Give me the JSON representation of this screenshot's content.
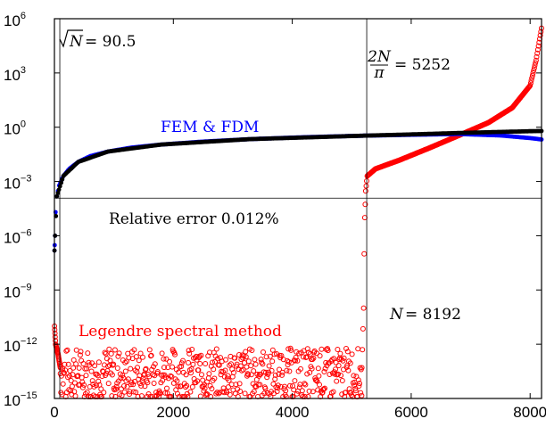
{
  "chart_data": {
    "type": "scatter",
    "x_axis": {
      "range": [
        0,
        8192
      ],
      "ticks": [
        0,
        2000,
        4000,
        6000,
        8000
      ],
      "tick_labels": [
        "0",
        "2000",
        "4000",
        "6000",
        "8000"
      ]
    },
    "y_axis": {
      "scale": "log",
      "range": [
        1e-15,
        1000000.0
      ],
      "ticks": [
        1e-15,
        1e-12,
        1e-09,
        1e-06,
        0.001,
        1,
        1000.0,
        1000000.0
      ],
      "tick_base": "10",
      "tick_exponents": [
        "−15",
        "−12",
        "−9",
        "−6",
        "−3",
        "0",
        "3",
        "6"
      ]
    },
    "grid": false,
    "reference_lines": {
      "vertical_x": [
        90.5,
        5252
      ],
      "horizontal_y": 0.00012
    },
    "annotations": {
      "sqrt_n": {
        "prefix": "N",
        "text": "= 90.5"
      },
      "two_n_over_pi": {
        "numerator": "2N",
        "denominator": "π",
        "text": "= 5252"
      },
      "fem_fdm": "FEM & FDM",
      "relative_error": "Relative error 0.012%",
      "n_value": {
        "var": "N",
        "text": "= 8192"
      },
      "legendre": "Legendre spectral method"
    },
    "series": [
      {
        "color": "#0000ff",
        "marker": "dot",
        "points": [
          [
            1,
            1.5e-07
          ],
          [
            5,
            3e-07
          ],
          [
            10,
            1e-06
          ],
          [
            20,
            2e-05
          ],
          [
            40,
            0.00015
          ],
          [
            80,
            0.0006
          ],
          [
            150,
            0.002
          ],
          [
            250,
            0.005
          ],
          [
            400,
            0.012
          ],
          [
            600,
            0.025
          ],
          [
            900,
            0.045
          ],
          [
            1300,
            0.075
          ],
          [
            1800,
            0.11
          ],
          [
            2500,
            0.16
          ],
          [
            3300,
            0.22
          ],
          [
            4200,
            0.28
          ],
          [
            5200,
            0.34
          ],
          [
            6000,
            0.38
          ],
          [
            6800,
            0.42
          ],
          [
            7500,
            0.35
          ],
          [
            8000,
            0.25
          ],
          [
            8192,
            0.21
          ]
        ]
      },
      {
        "color": "#000000",
        "marker": "dot",
        "points": [
          [
            1,
            1.5e-07
          ],
          [
            10,
            1e-06
          ],
          [
            40,
            0.00015
          ],
          [
            150,
            0.002
          ],
          [
            400,
            0.012
          ],
          [
            900,
            0.045
          ],
          [
            1800,
            0.11
          ],
          [
            3300,
            0.22
          ],
          [
            5200,
            0.34
          ],
          [
            6000,
            0.4
          ],
          [
            6800,
            0.48
          ],
          [
            7500,
            0.55
          ],
          [
            8000,
            0.6
          ],
          [
            8192,
            0.62
          ]
        ]
      },
      {
        "color": "#ff0000",
        "marker": "circle",
        "points": [
          [
            1,
            1e-11
          ],
          [
            20,
            1e-12
          ],
          [
            60,
            3e-13
          ],
          [
            100,
            5e-14
          ],
          [
            5170,
            5e-14
          ],
          [
            5180,
            5e-13
          ],
          [
            5200,
            1e-10
          ],
          [
            5210,
            1e-07
          ],
          [
            5220,
            1e-05
          ],
          [
            5235,
            0.0003
          ],
          [
            5260,
            0.002
          ],
          [
            5400,
            0.005
          ],
          [
            5800,
            0.015
          ],
          [
            6300,
            0.07
          ],
          [
            6800,
            0.35
          ],
          [
            7300,
            1.8
          ],
          [
            7700,
            12
          ],
          [
            8000,
            200
          ],
          [
            8100,
            5000
          ],
          [
            8192,
            300000.0
          ]
        ]
      }
    ]
  }
}
